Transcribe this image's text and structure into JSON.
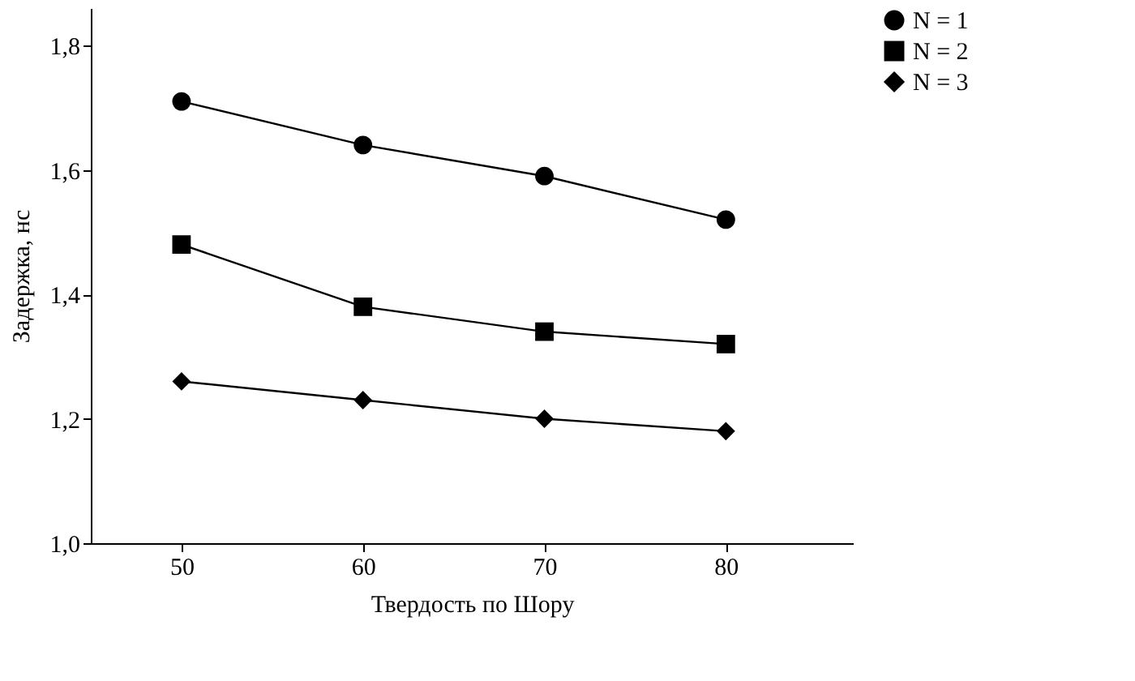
{
  "chart_data": {
    "type": "line",
    "xlabel": "Твердость по Шору",
    "ylabel": "Задержка, нс",
    "x": [
      50,
      60,
      70,
      80
    ],
    "series": [
      {
        "name": "N = 1",
        "color": "#000000",
        "marker": "circle",
        "values": [
          1.71,
          1.64,
          1.59,
          1.52
        ]
      },
      {
        "name": "N = 2",
        "color": "#000000",
        "marker": "square",
        "values": [
          1.48,
          1.38,
          1.34,
          1.32
        ]
      },
      {
        "name": "N = 3",
        "color": "#000000",
        "marker": "diamond",
        "values": [
          1.26,
          1.23,
          1.2,
          1.18
        ]
      }
    ],
    "xlim": [
      45,
      87
    ],
    "xticks": [
      50,
      60,
      70,
      80
    ],
    "ylim": [
      1.0,
      1.86
    ],
    "yticks": [
      {
        "value": 1.0,
        "label": "1,0"
      },
      {
        "value": 1.2,
        "label": "1,2"
      },
      {
        "value": 1.4,
        "label": "1,4"
      },
      {
        "value": 1.6,
        "label": "1,6"
      },
      {
        "value": 1.8,
        "label": "1,8"
      }
    ],
    "grid": false,
    "legend": "right",
    "line_style": "solid"
  }
}
